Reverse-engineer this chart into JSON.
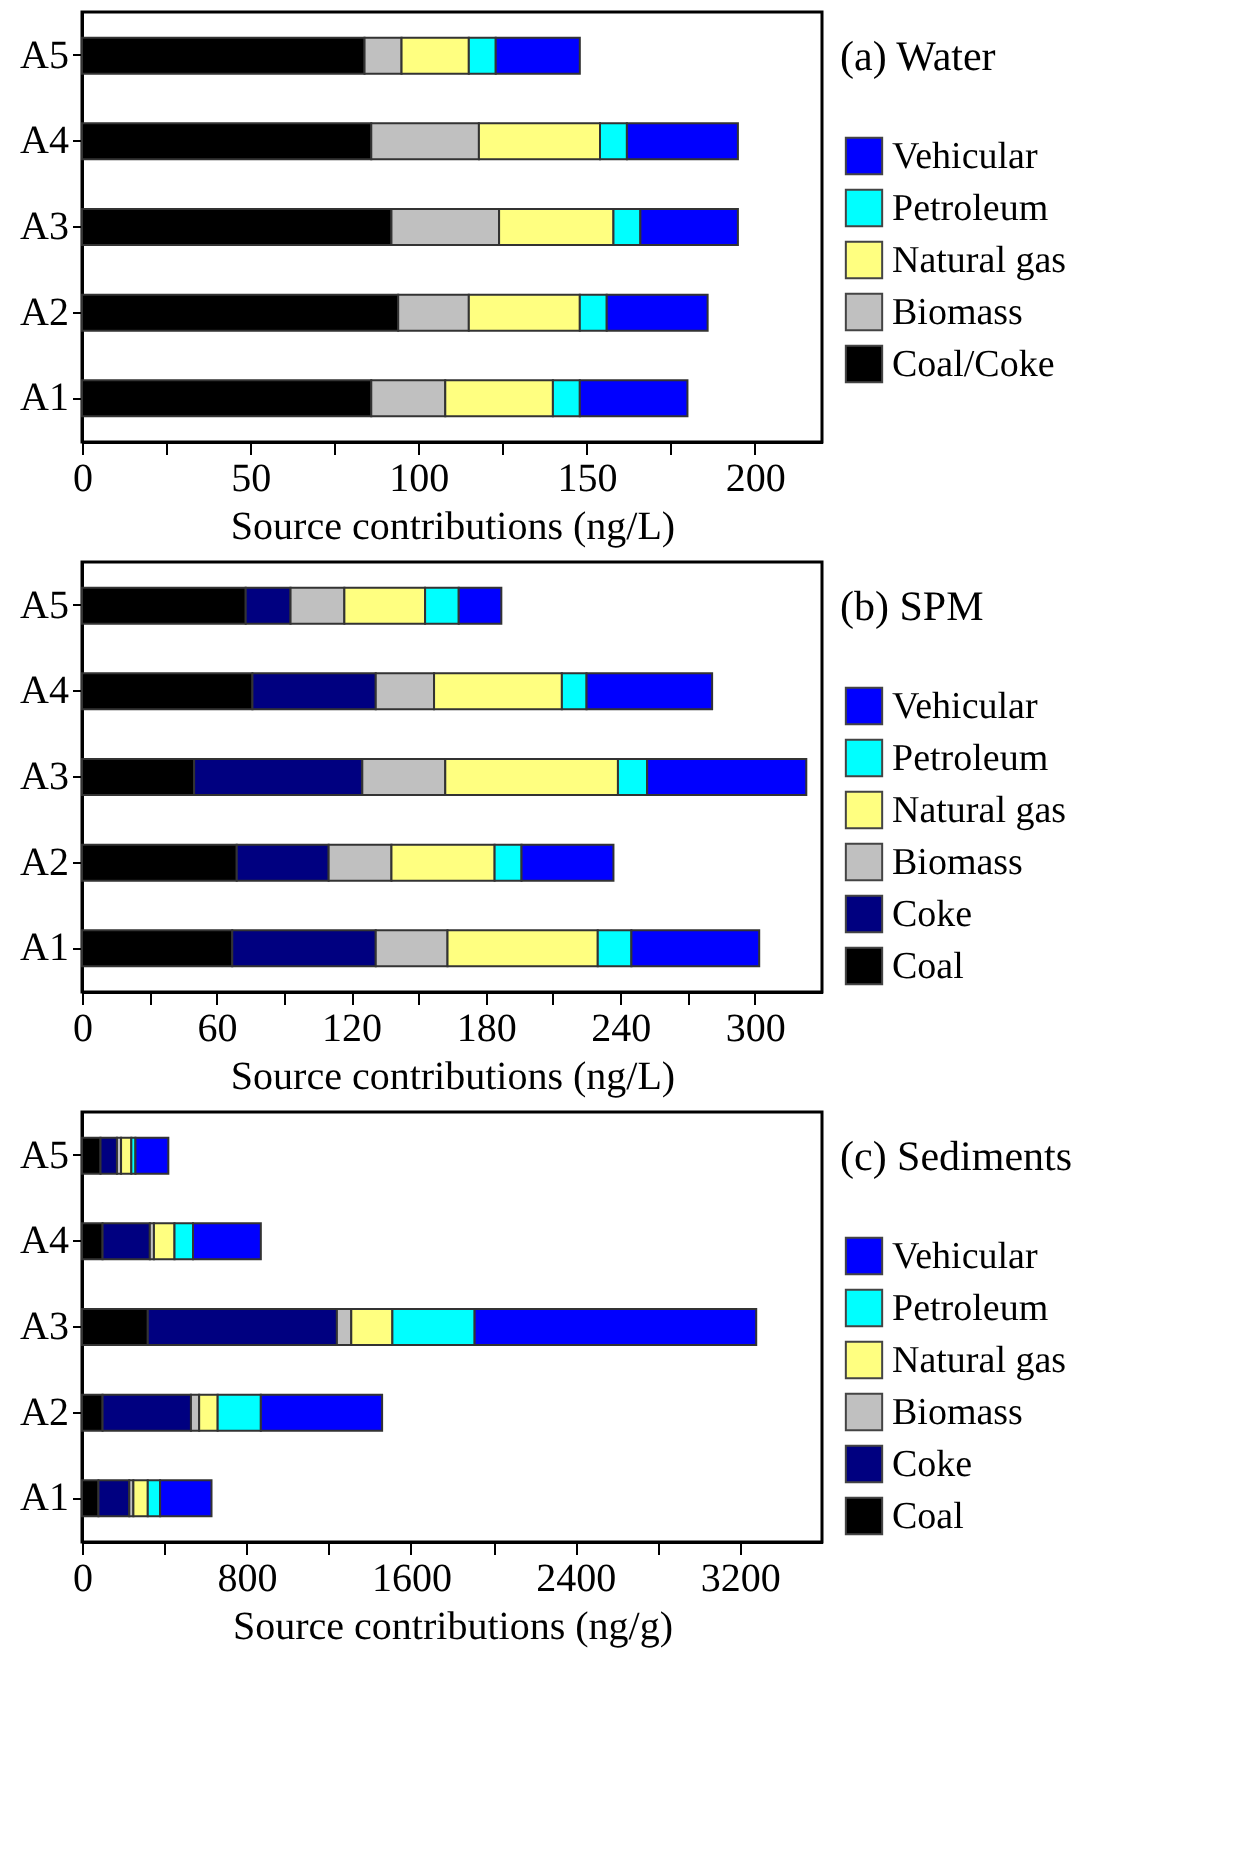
{
  "chart_data": [
    {
      "type": "bar",
      "orientation": "horizontal",
      "stacked": true,
      "title": "(a) Water",
      "xlabel": "Source contributions (ng/L)",
      "legend": "right",
      "grid": false,
      "categories": [
        "A5",
        "A4",
        "A3",
        "A2",
        "A1"
      ],
      "xlim": [
        0,
        220
      ],
      "xticks": [
        0,
        {
          "value": 25,
          "label": null
        },
        50,
        {
          "value": 75,
          "label": null
        },
        100,
        {
          "value": 125,
          "label": null
        },
        150,
        {
          "value": 175,
          "label": null
        },
        200
      ],
      "series": [
        {
          "name": "Coal/Coke",
          "color": "#000000",
          "values": [
            84,
            86,
            92,
            94,
            86
          ]
        },
        {
          "name": "Biomass",
          "color": "#c0c0c0",
          "values": [
            11,
            32,
            32,
            21,
            22
          ]
        },
        {
          "name": "Natural gas",
          "color": "#ffff80",
          "values": [
            20,
            36,
            34,
            33,
            32
          ]
        },
        {
          "name": "Petroleum",
          "color": "#00ffff",
          "values": [
            8,
            8,
            8,
            8,
            8
          ]
        },
        {
          "name": "Vehicular",
          "color": "#0000ff",
          "values": [
            25,
            33,
            29,
            30,
            32
          ]
        }
      ]
    },
    {
      "type": "bar",
      "orientation": "horizontal",
      "stacked": true,
      "title": "(b) SPM",
      "xlabel": "Source contributions (ng/L)",
      "legend": "right",
      "grid": false,
      "categories": [
        "A5",
        "A4",
        "A3",
        "A2",
        "A1"
      ],
      "xlim": [
        0,
        330
      ],
      "xticks": [
        0,
        {
          "value": 30,
          "label": null
        },
        60,
        {
          "value": 90,
          "label": null
        },
        120,
        {
          "value": 150,
          "label": null
        },
        180,
        {
          "value": 210,
          "label": null
        },
        240,
        {
          "value": 270,
          "label": null
        },
        300
      ],
      "series": [
        {
          "name": "Coal",
          "color": "#000000",
          "values": [
            73,
            76,
            50,
            69,
            67
          ]
        },
        {
          "name": "Coke",
          "color": "#000080",
          "values": [
            20,
            55,
            75,
            41,
            64
          ]
        },
        {
          "name": "Biomass",
          "color": "#c0c0c0",
          "values": [
            24,
            26,
            37,
            28,
            32
          ]
        },
        {
          "name": "Natural gas",
          "color": "#ffff80",
          "values": [
            36,
            57,
            77,
            46,
            67
          ]
        },
        {
          "name": "Petroleum",
          "color": "#00ffff",
          "values": [
            15,
            11,
            13,
            12,
            15
          ]
        },
        {
          "name": "Vehicular",
          "color": "#0000ff",
          "values": [
            19,
            56,
            71,
            41,
            57
          ]
        }
      ]
    },
    {
      "type": "bar",
      "orientation": "horizontal",
      "stacked": true,
      "title": "(c) Sediments",
      "xlabel": "Source contributions (ng/g)",
      "legend": "right",
      "grid": false,
      "categories": [
        "A5",
        "A4",
        "A3",
        "A2",
        "A1"
      ],
      "xlim": [
        0,
        3600
      ],
      "xticks": [
        0,
        {
          "value": 400,
          "label": null
        },
        800,
        {
          "value": 1200,
          "label": null
        },
        1600,
        {
          "value": 2000,
          "label": null
        },
        2400,
        {
          "value": 2800,
          "label": null
        },
        3200
      ],
      "series": [
        {
          "name": "Coal",
          "color": "#000000",
          "values": [
            90,
            100,
            320,
            100,
            80
          ]
        },
        {
          "name": "Coke",
          "color": "#000080",
          "values": [
            80,
            230,
            920,
            430,
            150
          ]
        },
        {
          "name": "Biomass",
          "color": "#c0c0c0",
          "values": [
            20,
            20,
            70,
            40,
            20
          ]
        },
        {
          "name": "Natural gas",
          "color": "#ffff80",
          "values": [
            50,
            100,
            200,
            90,
            70
          ]
        },
        {
          "name": "Petroleum",
          "color": "#00ffff",
          "values": [
            20,
            90,
            400,
            210,
            60
          ]
        },
        {
          "name": "Vehicular",
          "color": "#0000ff",
          "values": [
            160,
            330,
            1370,
            590,
            250
          ]
        }
      ]
    }
  ]
}
